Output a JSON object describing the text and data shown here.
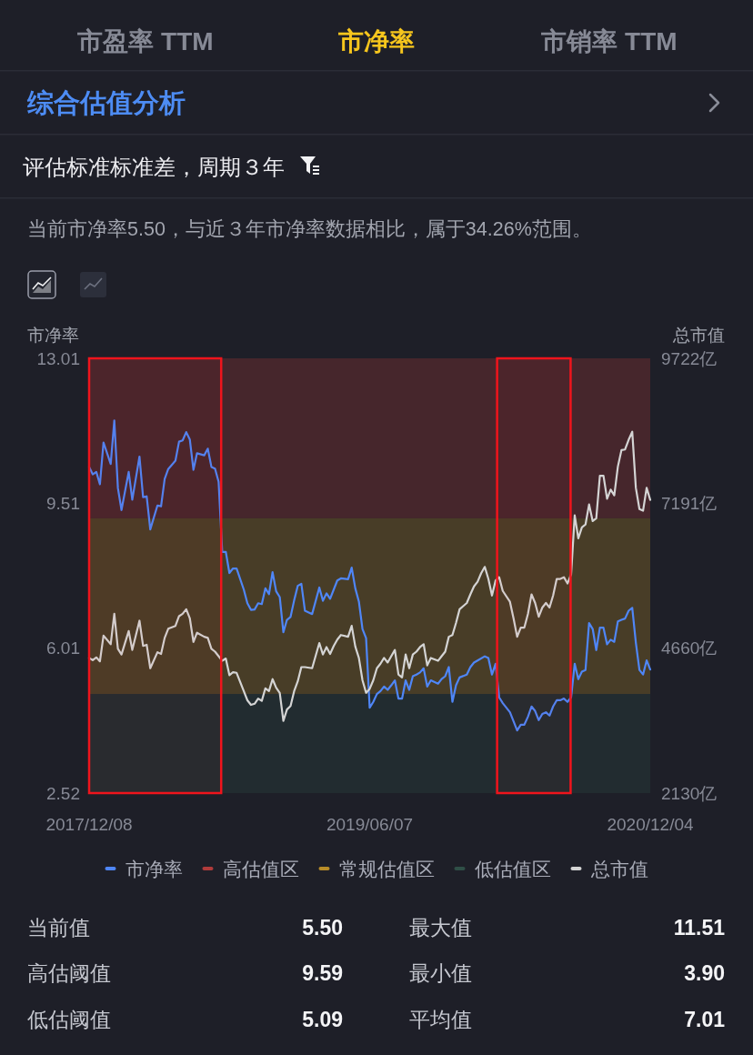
{
  "chart_data": {
    "type": "line",
    "title": "市净率",
    "subtitle": "当前市净率5.50，与近３年市净率数据相比，属于34.26%范围。",
    "ylabel": "市净率",
    "y2label": "总市值",
    "annotations": [
      "市盈率 TTM",
      "市销率 TTM",
      "综合估值分析",
      "评估标准标准差，周期３年",
      "当前值",
      "5.50",
      "最大值",
      "11.51",
      "高估阈值",
      "9.59",
      "最小值",
      "3.90",
      "低估阈值",
      "5.09",
      "平均值",
      "7.01"
    ],
    "xlim": [
      "2017-12-08",
      "2020-12-04"
    ],
    "xticks": [
      {
        "value": "2017-12-08",
        "label": "2017/12/08"
      },
      {
        "value": "2019-06-07",
        "label": "2019/06/07"
      },
      {
        "value": "2020-12-04",
        "label": "2020/12/04"
      }
    ],
    "ylim": [
      2.52,
      13.01
    ],
    "yticks": [
      2.52,
      6.01,
      9.51,
      13.01
    ],
    "y2lim": [
      2130,
      9722
    ],
    "y2ticks": [
      {
        "value": 2130,
        "label": "2130亿"
      },
      {
        "value": 4660,
        "label": "4660亿"
      },
      {
        "value": 7191,
        "label": "7191亿"
      },
      {
        "value": 9722,
        "label": "9722亿"
      }
    ],
    "legend": "bottom",
    "bands": [
      {
        "axis": "y",
        "from": 9.15,
        "to": 13.01,
        "label": "高估值区",
        "color": "#b03b3b"
      },
      {
        "axis": "y",
        "from": 4.91,
        "to": 9.15,
        "label": "常规估值区",
        "color": "#b88c28"
      },
      {
        "axis": "y",
        "from": 2.52,
        "to": 4.91,
        "label": "低估值区",
        "color": "#2f4f47"
      },
      {
        "axis": "x",
        "from": "2017-12-08",
        "to": "2018-08-22",
        "color": "#f0141c"
      },
      {
        "axis": "x",
        "from": "2020-02-10",
        "to": "2020-07-02",
        "color": "#f0141c"
      }
    ],
    "series": [
      {
        "name": "市净率",
        "color": "#4f86f7",
        "x": [
          "2017-12-08",
          "2017-12-15",
          "2017-12-22",
          "2017-12-29",
          "2018-01-05",
          "2018-01-19",
          "2018-01-26",
          "2018-02-02",
          "2018-02-09",
          "2018-02-23",
          "2018-03-02",
          "2018-03-16",
          "2018-03-23",
          "2018-03-30",
          "2018-04-06",
          "2018-04-20",
          "2018-04-27",
          "2018-05-04",
          "2018-05-11",
          "2018-05-25",
          "2018-06-01",
          "2018-06-08",
          "2018-06-15",
          "2018-06-22",
          "2018-06-29",
          "2018-07-06",
          "2018-07-20",
          "2018-07-27",
          "2018-08-03",
          "2018-08-10",
          "2018-08-17",
          "2018-08-24",
          "2018-08-31",
          "2018-09-07",
          "2018-09-14",
          "2018-09-21",
          "2018-10-05",
          "2018-10-12",
          "2018-10-19",
          "2018-10-26",
          "2018-11-02",
          "2018-11-09",
          "2018-11-16",
          "2018-11-23",
          "2018-11-30",
          "2018-12-07",
          "2018-12-14",
          "2018-12-21",
          "2018-12-28",
          "2019-01-04",
          "2019-01-11",
          "2019-01-18",
          "2019-01-25",
          "2019-02-01",
          "2019-02-15",
          "2019-03-01",
          "2019-03-08",
          "2019-03-15",
          "2019-03-22",
          "2019-03-29",
          "2019-04-05",
          "2019-04-12",
          "2019-04-26",
          "2019-05-03",
          "2019-05-10",
          "2019-05-17",
          "2019-05-24",
          "2019-05-31",
          "2019-06-07",
          "2019-06-14",
          "2019-06-21",
          "2019-06-28",
          "2019-07-05",
          "2019-07-12",
          "2019-07-19",
          "2019-07-26",
          "2019-08-02",
          "2019-08-09",
          "2019-08-16",
          "2019-08-23",
          "2019-08-30",
          "2019-09-06",
          "2019-09-13",
          "2019-09-20",
          "2019-09-27",
          "2019-10-04",
          "2019-10-18",
          "2019-10-25",
          "2019-11-01",
          "2019-11-08",
          "2019-11-15",
          "2019-11-22",
          "2019-11-29",
          "2019-12-13",
          "2019-12-20",
          "2019-12-27",
          "2020-01-03",
          "2020-01-17",
          "2020-01-24",
          "2020-01-31",
          "2020-02-07",
          "2020-02-14",
          "2020-02-21",
          "2020-03-06",
          "2020-03-13",
          "2020-03-20",
          "2020-03-27",
          "2020-04-03",
          "2020-04-10",
          "2020-04-17",
          "2020-04-24",
          "2020-05-01",
          "2020-05-08",
          "2020-05-15",
          "2020-05-22",
          "2020-05-29",
          "2020-06-05",
          "2020-06-12",
          "2020-06-19",
          "2020-06-26",
          "2020-07-03",
          "2020-07-10",
          "2020-07-17",
          "2020-07-24",
          "2020-07-31",
          "2020-08-07",
          "2020-08-14",
          "2020-08-21",
          "2020-08-28",
          "2020-09-04",
          "2020-09-11",
          "2020-09-18",
          "2020-09-25",
          "2020-10-02",
          "2020-10-09",
          "2020-10-16",
          "2020-10-23",
          "2020-10-30",
          "2020-11-06",
          "2020-11-13",
          "2020-11-20",
          "2020-11-27",
          "2020-12-04"
        ],
        "values": [
          10.39,
          10.21,
          10.27,
          9.97,
          10.98,
          10.46,
          11.51,
          9.88,
          9.35,
          10.27,
          9.6,
          10.64,
          9.66,
          9.68,
          8.88,
          9.46,
          9.44,
          10.1,
          10.34,
          10.54,
          11.0,
          11.03,
          11.23,
          11.05,
          10.32,
          10.72,
          10.67,
          10.83,
          10.39,
          10.35,
          10.03,
          8.34,
          8.34,
          7.83,
          7.94,
          7.94,
          7.43,
          7.1,
          6.94,
          6.95,
          7.1,
          7.08,
          7.46,
          7.32,
          7.85,
          7.39,
          7.25,
          6.4,
          6.7,
          6.77,
          7.17,
          7.52,
          7.57,
          6.92,
          6.84,
          7.48,
          7.16,
          7.34,
          7.21,
          7.43,
          7.65,
          7.7,
          7.68,
          7.96,
          7.46,
          7.14,
          6.48,
          6.26,
          4.58,
          4.72,
          4.91,
          4.98,
          5.09,
          5.01,
          5.12,
          5.24,
          4.8,
          4.8,
          5.24,
          5.01,
          5.34,
          5.38,
          5.43,
          5.53,
          5.09,
          5.24,
          5.16,
          5.27,
          5.34,
          5.56,
          4.72,
          5.12,
          5.31,
          5.38,
          5.56,
          5.67,
          5.72,
          5.82,
          5.78,
          5.38,
          5.64,
          4.83,
          4.69,
          4.47,
          4.25,
          4.03,
          4.17,
          4.17,
          4.36,
          4.61,
          4.5,
          4.28,
          4.43,
          4.47,
          4.39,
          4.61,
          4.76,
          4.76,
          4.8,
          4.72,
          4.83,
          5.64,
          5.27,
          5.45,
          5.49,
          6.62,
          6.48,
          5.97,
          6.51,
          6.51,
          6.11,
          6.22,
          6.17,
          6.66,
          6.7,
          6.73,
          6.92,
          6.99,
          6.15,
          5.49,
          5.38,
          5.72,
          5.5
        ]
      },
      {
        "name": "总市值",
        "color": "#d4d4d4",
        "axis": "y2",
        "x": [
          "2017-12-08",
          "2017-12-15",
          "2017-12-22",
          "2017-12-29",
          "2018-01-05",
          "2018-01-19",
          "2018-01-26",
          "2018-02-02",
          "2018-02-09",
          "2018-02-23",
          "2018-03-02",
          "2018-03-16",
          "2018-03-23",
          "2018-03-30",
          "2018-04-06",
          "2018-04-20",
          "2018-04-27",
          "2018-05-04",
          "2018-05-11",
          "2018-05-25",
          "2018-06-01",
          "2018-06-08",
          "2018-06-15",
          "2018-06-22",
          "2018-06-29",
          "2018-07-06",
          "2018-07-20",
          "2018-07-27",
          "2018-08-03",
          "2018-08-10",
          "2018-08-17",
          "2018-08-24",
          "2018-08-31",
          "2018-09-07",
          "2018-09-14",
          "2018-09-21",
          "2018-10-05",
          "2018-10-12",
          "2018-10-19",
          "2018-10-26",
          "2018-11-02",
          "2018-11-09",
          "2018-11-16",
          "2018-11-23",
          "2018-11-30",
          "2018-12-07",
          "2018-12-14",
          "2018-12-21",
          "2018-12-28",
          "2019-01-04",
          "2019-01-11",
          "2019-01-18",
          "2019-01-25",
          "2019-02-01",
          "2019-02-15",
          "2019-03-01",
          "2019-03-08",
          "2019-03-15",
          "2019-03-22",
          "2019-03-29",
          "2019-04-05",
          "2019-04-12",
          "2019-04-26",
          "2019-05-03",
          "2019-05-10",
          "2019-05-17",
          "2019-05-24",
          "2019-05-31",
          "2019-06-07",
          "2019-06-14",
          "2019-06-21",
          "2019-06-28",
          "2019-07-05",
          "2019-07-12",
          "2019-07-19",
          "2019-07-26",
          "2019-08-02",
          "2019-08-09",
          "2019-08-16",
          "2019-08-23",
          "2019-08-30",
          "2019-09-06",
          "2019-09-13",
          "2019-09-20",
          "2019-09-27",
          "2019-10-04",
          "2019-10-18",
          "2019-10-25",
          "2019-11-01",
          "2019-11-08",
          "2019-11-15",
          "2019-11-22",
          "2019-11-29",
          "2019-12-13",
          "2019-12-20",
          "2019-12-27",
          "2020-01-03",
          "2020-01-10",
          "2020-01-17",
          "2020-01-24",
          "2020-01-31",
          "2020-02-07",
          "2020-02-14",
          "2020-02-21",
          "2020-03-06",
          "2020-03-13",
          "2020-03-20",
          "2020-03-27",
          "2020-04-03",
          "2020-04-10",
          "2020-04-17",
          "2020-04-24",
          "2020-05-01",
          "2020-05-08",
          "2020-05-15",
          "2020-05-22",
          "2020-05-29",
          "2020-06-05",
          "2020-06-12",
          "2020-06-19",
          "2020-06-26",
          "2020-07-03",
          "2020-07-10",
          "2020-07-17",
          "2020-07-24",
          "2020-07-31",
          "2020-08-07",
          "2020-08-14",
          "2020-08-21",
          "2020-08-28",
          "2020-09-04",
          "2020-09-11",
          "2020-09-18",
          "2020-09-25",
          "2020-10-02",
          "2020-10-09",
          "2020-10-16",
          "2020-10-23",
          "2020-10-30",
          "2020-11-06",
          "2020-11-13",
          "2020-11-20",
          "2020-11-27",
          "2020-12-04"
        ],
        "values": [
          4490,
          4450,
          4500,
          4430,
          4880,
          4730,
          5260,
          4650,
          4550,
          4960,
          4630,
          5140,
          4700,
          4720,
          4310,
          4590,
          4560,
          4840,
          5000,
          5050,
          5220,
          5260,
          5340,
          5180,
          4770,
          4930,
          4860,
          4840,
          4650,
          4600,
          4520,
          4440,
          4480,
          4190,
          4240,
          4230,
          3910,
          3750,
          3670,
          3690,
          3780,
          3740,
          3960,
          3910,
          4120,
          3970,
          3880,
          3390,
          3590,
          3650,
          3910,
          4080,
          4330,
          4330,
          4310,
          4750,
          4550,
          4680,
          4560,
          4700,
          4810,
          4890,
          4860,
          5050,
          4690,
          4490,
          4100,
          3880,
          3950,
          4100,
          4310,
          4390,
          4490,
          4410,
          4520,
          4630,
          4200,
          4150,
          4550,
          4310,
          4550,
          4600,
          4680,
          4730,
          4360,
          4490,
          4440,
          4520,
          4600,
          4860,
          4890,
          5100,
          5340,
          5450,
          5600,
          5740,
          5820,
          5970,
          6080,
          5870,
          5580,
          5840,
          5900,
          5660,
          5470,
          5180,
          4860,
          5020,
          5020,
          5260,
          5600,
          5450,
          5210,
          5370,
          5450,
          5370,
          5580,
          5870,
          5870,
          5900,
          5790,
          5950,
          6980,
          6580,
          6770,
          6820,
          7170,
          6880,
          6930,
          7670,
          7670,
          7270,
          7430,
          7330,
          7830,
          8120,
          8130,
          8300,
          8440,
          7460,
          7090,
          7060,
          7460,
          7250
        ]
      }
    ]
  }
}
